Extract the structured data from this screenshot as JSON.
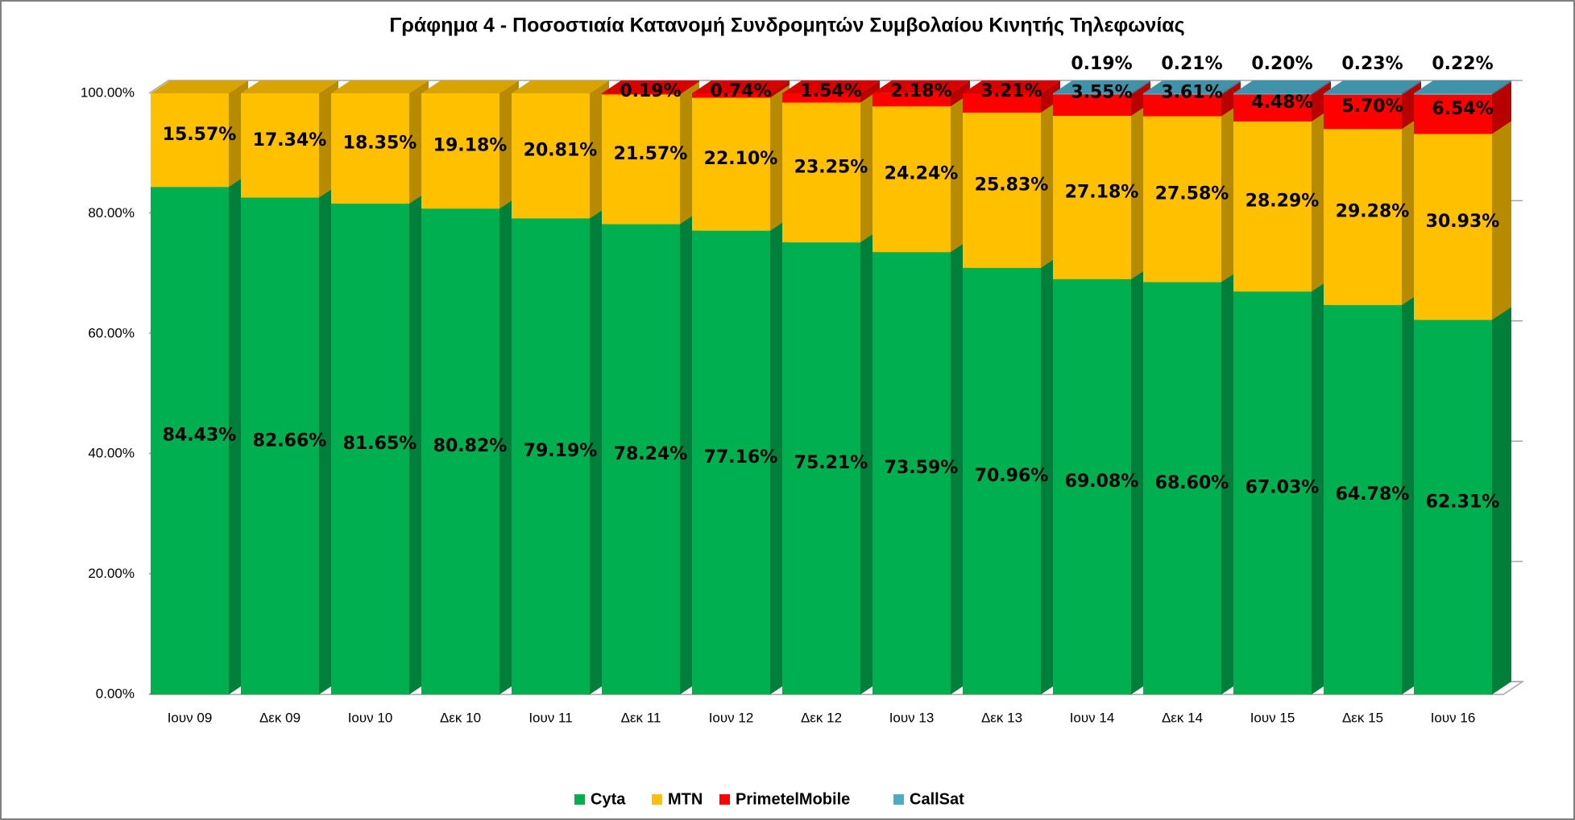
{
  "chart_data": {
    "type": "bar3d_stacked",
    "title": "Γράφημα 4 - Ποσοστιαία Κατανομή Συνδρομητών Συμβολαίου Κινητής Τηλεφωνίας",
    "categories": [
      "Ιουν 09",
      "Δεκ 09",
      "Ιουν 10",
      "Δεκ 10",
      "Ιουν 11",
      "Δεκ 11",
      "Ιουν 12",
      "Δεκ 12",
      "Ιουν 13",
      "Δεκ 13",
      "Ιουν 14",
      "Δεκ 14",
      "Ιουν 15",
      "Δεκ 15",
      "Ιουν 16"
    ],
    "series": [
      {
        "name": "Cyta",
        "color": "#00b050",
        "values": [
          84.43,
          82.66,
          81.65,
          80.82,
          79.19,
          78.24,
          77.16,
          75.21,
          73.59,
          70.96,
          69.08,
          68.6,
          67.03,
          64.78,
          62.31
        ],
        "value_labels": [
          "84.43%",
          "82.66%",
          "81.65%",
          "80.82%",
          "79.19%",
          "78.24%",
          "77.16%",
          "75.21%",
          "73.59%",
          "70.96%",
          "69.08%",
          "68.60%",
          "67.03%",
          "64.78%",
          "62.31%"
        ]
      },
      {
        "name": "MTN",
        "color": "#ffc000",
        "values": [
          15.57,
          17.34,
          18.35,
          19.18,
          20.81,
          21.57,
          22.1,
          23.25,
          24.24,
          25.83,
          27.18,
          27.58,
          28.29,
          29.28,
          30.93
        ],
        "value_labels": [
          "15.57%",
          "17.34%",
          "18.35%",
          "19.18%",
          "20.81%",
          "21.57%",
          "22.10%",
          "23.25%",
          "24.24%",
          "25.83%",
          "27.18%",
          "27.58%",
          "28.29%",
          "29.28%",
          "30.93%"
        ]
      },
      {
        "name": "PrimetelMobile",
        "color": "#ff0000",
        "values": [
          null,
          null,
          null,
          null,
          null,
          0.19,
          0.74,
          1.54,
          2.18,
          3.21,
          3.55,
          3.61,
          4.48,
          5.7,
          6.54
        ],
        "value_labels": [
          null,
          null,
          null,
          null,
          null,
          "0.19%",
          "0.74%",
          "1.54%",
          "2.18%",
          "3.21%",
          "3.55%",
          "3.61%",
          "4.48%",
          "5.70%",
          "6.54%"
        ]
      },
      {
        "name": "CallSat",
        "color": "#4bacc6",
        "values": [
          null,
          null,
          null,
          null,
          null,
          null,
          null,
          null,
          null,
          null,
          0.19,
          0.21,
          0.2,
          0.23,
          0.22
        ],
        "value_labels": [
          null,
          null,
          null,
          null,
          null,
          null,
          null,
          null,
          null,
          null,
          "0.19%",
          "0.21%",
          "0.20%",
          "0.23%",
          "0.22%"
        ]
      }
    ],
    "ylim": [
      0,
      100
    ],
    "yticks": [
      {
        "value": 0,
        "label": "0.00%"
      },
      {
        "value": 20,
        "label": "20.00%"
      },
      {
        "value": 40,
        "label": "40.00%"
      },
      {
        "value": 60,
        "label": "60.00%"
      },
      {
        "value": 80,
        "label": "80.00%"
      },
      {
        "value": 100,
        "label": "100.00%"
      }
    ],
    "grid": true,
    "legend": "bottom"
  }
}
